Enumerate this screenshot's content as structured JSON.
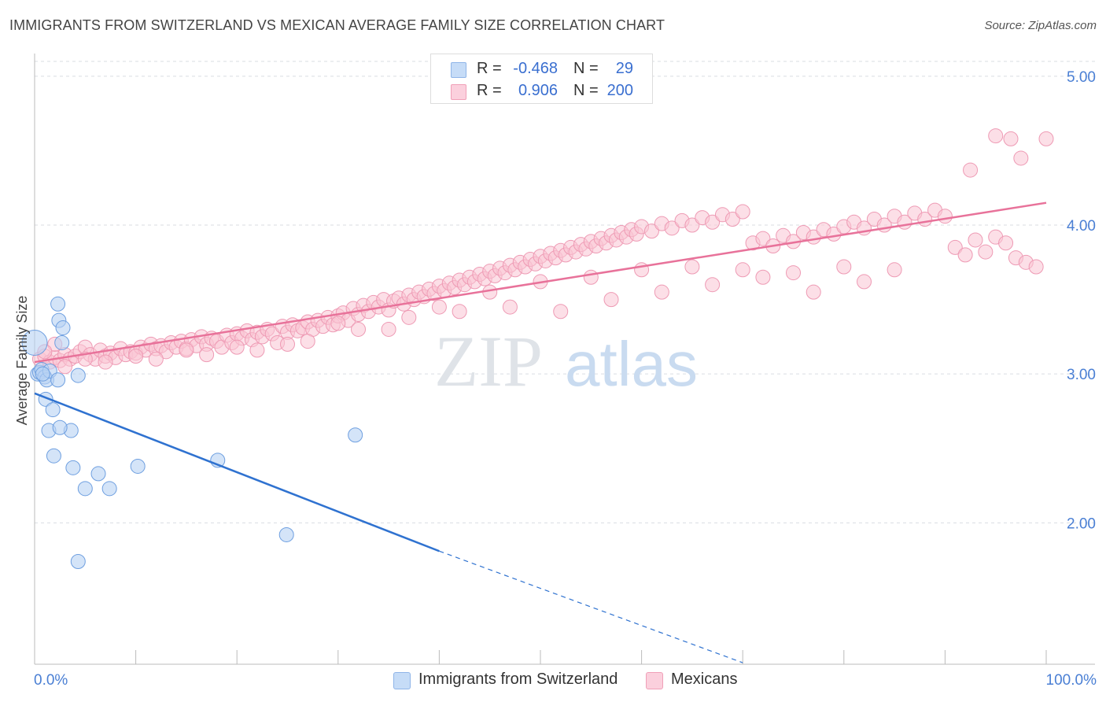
{
  "title": "IMMIGRANTS FROM SWITZERLAND VS MEXICAN AVERAGE FAMILY SIZE CORRELATION CHART",
  "source": "Source: ZipAtlas.com",
  "watermark": {
    "zip": "ZIP",
    "atlas": "atlas"
  },
  "legend": {
    "rows": [
      {
        "r_label": "R =",
        "r_value": "-0.468",
        "n_label": "N =",
        "n_value": "29",
        "color": "#a9c8f0"
      },
      {
        "r_label": "R =",
        "r_value": "0.906",
        "n_label": "N =",
        "n_value": "200",
        "color": "#f7b6c9"
      }
    ]
  },
  "bottom_legend": {
    "swiss": "Immigrants from Switzerland",
    "mexicans": "Mexicans"
  },
  "chart_data": {
    "type": "scatter",
    "ylabel": "Average Family Size",
    "xlabel": "",
    "x_tick_labels": [
      "0.0%",
      "100.0%"
    ],
    "y_tick_labels": [
      "2.00",
      "3.00",
      "4.00",
      "5.00"
    ],
    "y_ticks": [
      2.0,
      3.0,
      4.0,
      5.0
    ],
    "xlim": [
      0,
      100
    ],
    "ylim": [
      1.05,
      5.1
    ],
    "grid": "horizontal dashed",
    "colors": {
      "swiss": "#a9c8f0",
      "swiss_line": "#2f72d0",
      "mexicans": "#f7b6c9",
      "mexicans_line": "#e8729a"
    },
    "series": [
      {
        "name": "Immigrants from Switzerland",
        "trend": {
          "x0": 0,
          "y0": 2.87,
          "x1": 40,
          "y1": 1.81,
          "dashed_to_x": 70,
          "dashed_to_y": 1.06
        },
        "points": [
          [
            0,
            3.21
          ],
          [
            0.3,
            3.0
          ],
          [
            0.5,
            3.01
          ],
          [
            0.7,
            3.03
          ],
          [
            1,
            2.98
          ],
          [
            1.2,
            2.96
          ],
          [
            1.5,
            3.02
          ],
          [
            1.1,
            2.83
          ],
          [
            1.8,
            2.76
          ],
          [
            1.4,
            2.62
          ],
          [
            2.3,
            2.96
          ],
          [
            2.3,
            3.47
          ],
          [
            2.4,
            3.36
          ],
          [
            2.8,
            3.31
          ],
          [
            2.7,
            3.21
          ],
          [
            3.6,
            2.62
          ],
          [
            2.5,
            2.64
          ],
          [
            4.3,
            2.99
          ],
          [
            1.9,
            2.45
          ],
          [
            3.8,
            2.37
          ],
          [
            6.3,
            2.33
          ],
          [
            5,
            2.23
          ],
          [
            7.4,
            2.23
          ],
          [
            10.2,
            2.38
          ],
          [
            18.1,
            2.42
          ],
          [
            31.7,
            2.59
          ],
          [
            24.9,
            1.92
          ],
          [
            4.3,
            1.74
          ],
          [
            0.8,
            3.0
          ]
        ]
      },
      {
        "name": "Mexicans",
        "trend": {
          "x0": 0,
          "y0": 3.08,
          "x1": 100,
          "y1": 4.15
        },
        "points": [
          [
            0.5,
            3.1
          ],
          [
            1,
            3.12
          ],
          [
            1.5,
            3.08
          ],
          [
            2,
            3.11
          ],
          [
            2.5,
            3.09
          ],
          [
            3,
            3.13
          ],
          [
            3.5,
            3.1
          ],
          [
            4,
            3.12
          ],
          [
            4.5,
            3.15
          ],
          [
            5,
            3.18
          ],
          [
            5.5,
            3.13
          ],
          [
            6,
            3.1
          ],
          [
            6.5,
            3.16
          ],
          [
            7,
            3.12
          ],
          [
            7.5,
            3.14
          ],
          [
            8,
            3.11
          ],
          [
            8.5,
            3.17
          ],
          [
            9,
            3.13
          ],
          [
            9.5,
            3.15
          ],
          [
            10,
            3.14
          ],
          [
            10.5,
            3.18
          ],
          [
            11,
            3.16
          ],
          [
            11.5,
            3.2
          ],
          [
            12,
            3.17
          ],
          [
            12.5,
            3.19
          ],
          [
            13,
            3.15
          ],
          [
            13.5,
            3.21
          ],
          [
            14,
            3.18
          ],
          [
            14.5,
            3.22
          ],
          [
            15,
            3.17
          ],
          [
            15.5,
            3.23
          ],
          [
            16,
            3.19
          ],
          [
            16.5,
            3.25
          ],
          [
            17,
            3.2
          ],
          [
            17.5,
            3.24
          ],
          [
            18,
            3.22
          ],
          [
            18.5,
            3.18
          ],
          [
            19,
            3.26
          ],
          [
            19.5,
            3.21
          ],
          [
            20,
            3.27
          ],
          [
            20.5,
            3.24
          ],
          [
            21,
            3.29
          ],
          [
            21.5,
            3.23
          ],
          [
            22,
            3.28
          ],
          [
            22.5,
            3.25
          ],
          [
            23,
            3.3
          ],
          [
            23.5,
            3.27
          ],
          [
            24,
            3.21
          ],
          [
            24.5,
            3.32
          ],
          [
            25,
            3.28
          ],
          [
            25.5,
            3.33
          ],
          [
            26,
            3.29
          ],
          [
            26.5,
            3.31
          ],
          [
            27,
            3.35
          ],
          [
            27.5,
            3.3
          ],
          [
            28,
            3.36
          ],
          [
            28.5,
            3.32
          ],
          [
            29,
            3.38
          ],
          [
            29.5,
            3.33
          ],
          [
            30,
            3.39
          ],
          [
            30.5,
            3.41
          ],
          [
            31,
            3.36
          ],
          [
            31.5,
            3.44
          ],
          [
            32,
            3.4
          ],
          [
            32.5,
            3.46
          ],
          [
            33,
            3.42
          ],
          [
            33.5,
            3.48
          ],
          [
            34,
            3.45
          ],
          [
            34.5,
            3.5
          ],
          [
            35,
            3.43
          ],
          [
            35.5,
            3.49
          ],
          [
            36,
            3.51
          ],
          [
            36.5,
            3.47
          ],
          [
            37,
            3.53
          ],
          [
            37.5,
            3.5
          ],
          [
            38,
            3.55
          ],
          [
            38.5,
            3.52
          ],
          [
            39,
            3.57
          ],
          [
            39.5,
            3.54
          ],
          [
            40,
            3.59
          ],
          [
            40.5,
            3.56
          ],
          [
            41,
            3.61
          ],
          [
            41.5,
            3.58
          ],
          [
            42,
            3.63
          ],
          [
            42.5,
            3.6
          ],
          [
            43,
            3.65
          ],
          [
            43.5,
            3.62
          ],
          [
            44,
            3.67
          ],
          [
            44.5,
            3.64
          ],
          [
            45,
            3.69
          ],
          [
            45.5,
            3.66
          ],
          [
            46,
            3.71
          ],
          [
            46.5,
            3.68
          ],
          [
            47,
            3.73
          ],
          [
            47.5,
            3.7
          ],
          [
            48,
            3.75
          ],
          [
            48.5,
            3.72
          ],
          [
            49,
            3.77
          ],
          [
            49.5,
            3.74
          ],
          [
            50,
            3.79
          ],
          [
            50.5,
            3.76
          ],
          [
            51,
            3.81
          ],
          [
            51.5,
            3.78
          ],
          [
            52,
            3.83
          ],
          [
            52.5,
            3.8
          ],
          [
            53,
            3.85
          ],
          [
            53.5,
            3.82
          ],
          [
            54,
            3.87
          ],
          [
            54.5,
            3.84
          ],
          [
            55,
            3.89
          ],
          [
            55.5,
            3.86
          ],
          [
            56,
            3.91
          ],
          [
            56.5,
            3.88
          ],
          [
            57,
            3.93
          ],
          [
            57.5,
            3.9
          ],
          [
            58,
            3.95
          ],
          [
            58.5,
            3.92
          ],
          [
            59,
            3.97
          ],
          [
            59.5,
            3.94
          ],
          [
            60,
            3.99
          ],
          [
            61,
            3.96
          ],
          [
            62,
            4.01
          ],
          [
            63,
            3.98
          ],
          [
            64,
            4.03
          ],
          [
            65,
            4.0
          ],
          [
            66,
            4.05
          ],
          [
            67,
            4.02
          ],
          [
            68,
            4.07
          ],
          [
            69,
            4.04
          ],
          [
            70,
            4.09
          ],
          [
            71,
            3.88
          ],
          [
            72,
            3.91
          ],
          [
            73,
            3.86
          ],
          [
            74,
            3.93
          ],
          [
            75,
            3.89
          ],
          [
            76,
            3.95
          ],
          [
            77,
            3.92
          ],
          [
            78,
            3.97
          ],
          [
            79,
            3.94
          ],
          [
            80,
            3.99
          ],
          [
            81,
            4.02
          ],
          [
            82,
            3.98
          ],
          [
            83,
            4.04
          ],
          [
            84,
            4.0
          ],
          [
            85,
            4.06
          ],
          [
            86,
            4.02
          ],
          [
            87,
            4.08
          ],
          [
            88,
            4.04
          ],
          [
            89,
            4.1
          ],
          [
            90,
            4.06
          ],
          [
            91,
            3.85
          ],
          [
            92,
            3.8
          ],
          [
            93,
            3.9
          ],
          [
            94,
            3.82
          ],
          [
            95,
            3.92
          ],
          [
            96,
            3.88
          ],
          [
            97,
            3.78
          ],
          [
            98,
            3.75
          ],
          [
            99,
            3.72
          ],
          [
            100,
            4.58
          ],
          [
            95,
            4.6
          ],
          [
            96.5,
            4.58
          ],
          [
            97.5,
            4.45
          ],
          [
            92.5,
            4.37
          ],
          [
            85,
            3.7
          ],
          [
            80,
            3.72
          ],
          [
            75,
            3.68
          ],
          [
            70,
            3.7
          ],
          [
            65,
            3.72
          ],
          [
            60,
            3.7
          ],
          [
            55,
            3.65
          ],
          [
            50,
            3.62
          ],
          [
            45,
            3.55
          ],
          [
            40,
            3.45
          ],
          [
            35,
            3.3
          ],
          [
            30,
            3.34
          ],
          [
            25,
            3.2
          ],
          [
            20,
            3.18
          ],
          [
            15,
            3.16
          ],
          [
            10,
            3.12
          ],
          [
            5,
            3.1
          ],
          [
            2,
            3.2
          ],
          [
            1,
            3.15
          ],
          [
            3,
            3.05
          ],
          [
            7,
            3.08
          ],
          [
            12,
            3.1
          ],
          [
            17,
            3.13
          ],
          [
            22,
            3.16
          ],
          [
            27,
            3.22
          ],
          [
            32,
            3.3
          ],
          [
            37,
            3.38
          ],
          [
            42,
            3.42
          ],
          [
            47,
            3.45
          ],
          [
            52,
            3.42
          ],
          [
            57,
            3.5
          ],
          [
            62,
            3.55
          ],
          [
            67,
            3.6
          ],
          [
            72,
            3.65
          ],
          [
            77,
            3.55
          ],
          [
            82,
            3.62
          ]
        ]
      }
    ]
  }
}
